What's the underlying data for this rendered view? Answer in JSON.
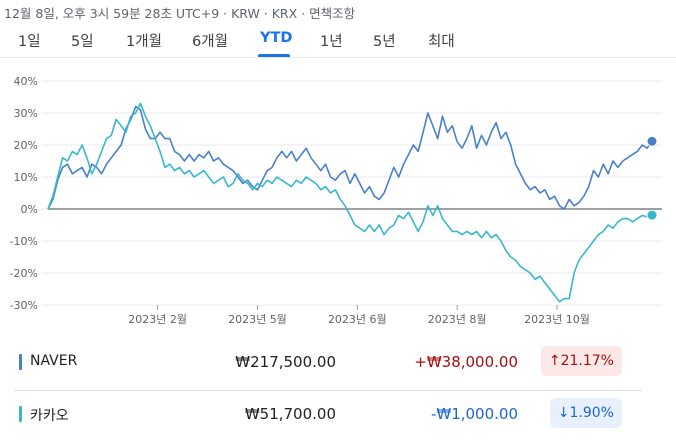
{
  "header": {
    "timestamp": "12월 8일, 오후 3시 59분 28초 UTC+9 · KRW · KRX · 면책조항"
  },
  "ranges": [
    {
      "label": "1일",
      "active": false
    },
    {
      "label": "5일",
      "active": false
    },
    {
      "label": "1개월",
      "active": false
    },
    {
      "label": "6개월",
      "active": false
    },
    {
      "label": "YTD",
      "active": true
    },
    {
      "label": "1년",
      "active": false
    },
    {
      "label": "5년",
      "active": false
    },
    {
      "label": "최대",
      "active": false
    }
  ],
  "colors": {
    "naver": "#4a80c8",
    "kakao": "#38b8cc",
    "grid": "#e8eaed",
    "zero": "#3c4043"
  },
  "chart_data": {
    "type": "line",
    "title": "",
    "xlabel": "",
    "ylabel": "",
    "ylim": [
      -30,
      40
    ],
    "yticks": [
      40,
      30,
      20,
      10,
      0,
      -10,
      -20,
      -30
    ],
    "ytick_labels": [
      "40%",
      "30%",
      "20%",
      "10%",
      "0%",
      "-10%",
      "-20%",
      "-30%"
    ],
    "x_range": [
      0,
      242
    ],
    "x_ticks": [
      {
        "x": 45,
        "label": "2023년 2월"
      },
      {
        "x": 86,
        "label": "2023년 5월"
      },
      {
        "x": 127,
        "label": "2023년 6월"
      },
      {
        "x": 168,
        "label": "2023년 8월"
      },
      {
        "x": 209,
        "label": "2023년 10월"
      }
    ],
    "series": [
      {
        "name": "NAVER",
        "points": [
          [
            0,
            0
          ],
          [
            2,
            3
          ],
          [
            4,
            9
          ],
          [
            6,
            13
          ],
          [
            8,
            14
          ],
          [
            10,
            11
          ],
          [
            12,
            12
          ],
          [
            14,
            13
          ],
          [
            16,
            10
          ],
          [
            18,
            14
          ],
          [
            20,
            13
          ],
          [
            22,
            11
          ],
          [
            24,
            14
          ],
          [
            26,
            16
          ],
          [
            28,
            18
          ],
          [
            30,
            20
          ],
          [
            32,
            25
          ],
          [
            34,
            28
          ],
          [
            36,
            32
          ],
          [
            38,
            31
          ],
          [
            40,
            25
          ],
          [
            42,
            22
          ],
          [
            44,
            22
          ],
          [
            46,
            24
          ],
          [
            48,
            22
          ],
          [
            50,
            22
          ],
          [
            52,
            18
          ],
          [
            54,
            17
          ],
          [
            56,
            15
          ],
          [
            58,
            17
          ],
          [
            60,
            15
          ],
          [
            62,
            17
          ],
          [
            64,
            16
          ],
          [
            66,
            18
          ],
          [
            68,
            15
          ],
          [
            70,
            16
          ],
          [
            72,
            14
          ],
          [
            74,
            13
          ],
          [
            76,
            12
          ],
          [
            78,
            10
          ],
          [
            80,
            8
          ],
          [
            82,
            9
          ],
          [
            84,
            7
          ],
          [
            86,
            6
          ],
          [
            88,
            9
          ],
          [
            90,
            12
          ],
          [
            92,
            13
          ],
          [
            94,
            16
          ],
          [
            96,
            18
          ],
          [
            98,
            16
          ],
          [
            100,
            18
          ],
          [
            102,
            15
          ],
          [
            104,
            17
          ],
          [
            106,
            19
          ],
          [
            108,
            16
          ],
          [
            110,
            14
          ],
          [
            112,
            12
          ],
          [
            114,
            14
          ],
          [
            116,
            10
          ],
          [
            118,
            9
          ],
          [
            120,
            11
          ],
          [
            122,
            12
          ],
          [
            124,
            8
          ],
          [
            126,
            11
          ],
          [
            128,
            8
          ],
          [
            130,
            5
          ],
          [
            132,
            7
          ],
          [
            134,
            4
          ],
          [
            136,
            3
          ],
          [
            138,
            5
          ],
          [
            140,
            9
          ],
          [
            142,
            13
          ],
          [
            144,
            10
          ],
          [
            146,
            14
          ],
          [
            148,
            17
          ],
          [
            150,
            20
          ],
          [
            152,
            18
          ],
          [
            154,
            24
          ],
          [
            156,
            30
          ],
          [
            158,
            26
          ],
          [
            160,
            22
          ],
          [
            162,
            29
          ],
          [
            164,
            24
          ],
          [
            166,
            26
          ],
          [
            168,
            21
          ],
          [
            170,
            19
          ],
          [
            172,
            22
          ],
          [
            174,
            26
          ],
          [
            176,
            19
          ],
          [
            178,
            23
          ],
          [
            180,
            20
          ],
          [
            182,
            24
          ],
          [
            184,
            27
          ],
          [
            186,
            22
          ],
          [
            188,
            24
          ],
          [
            190,
            20
          ],
          [
            192,
            14
          ],
          [
            194,
            11
          ],
          [
            196,
            8
          ],
          [
            198,
            6
          ],
          [
            200,
            7
          ],
          [
            202,
            5
          ],
          [
            204,
            6
          ],
          [
            206,
            3
          ],
          [
            208,
            4
          ],
          [
            210,
            1
          ],
          [
            212,
            0
          ],
          [
            214,
            3
          ],
          [
            216,
            1
          ],
          [
            218,
            2
          ],
          [
            220,
            4
          ],
          [
            222,
            7
          ],
          [
            224,
            12
          ],
          [
            226,
            10
          ],
          [
            228,
            14
          ],
          [
            230,
            11
          ],
          [
            232,
            15
          ],
          [
            234,
            13
          ],
          [
            236,
            15
          ],
          [
            238,
            16
          ],
          [
            240,
            17
          ],
          [
            242,
            18
          ],
          [
            244,
            20
          ],
          [
            246,
            19
          ],
          [
            248,
            21.17
          ]
        ]
      },
      {
        "name": "카카오",
        "points": [
          [
            0,
            0
          ],
          [
            2,
            4
          ],
          [
            4,
            10
          ],
          [
            6,
            16
          ],
          [
            8,
            15
          ],
          [
            10,
            18
          ],
          [
            12,
            17
          ],
          [
            14,
            20
          ],
          [
            16,
            16
          ],
          [
            18,
            11
          ],
          [
            20,
            14
          ],
          [
            22,
            18
          ],
          [
            24,
            22
          ],
          [
            26,
            23
          ],
          [
            28,
            28
          ],
          [
            30,
            26
          ],
          [
            32,
            24
          ],
          [
            34,
            29
          ],
          [
            36,
            30
          ],
          [
            38,
            33
          ],
          [
            40,
            29
          ],
          [
            42,
            26
          ],
          [
            44,
            22
          ],
          [
            46,
            18
          ],
          [
            48,
            13
          ],
          [
            50,
            14
          ],
          [
            52,
            12
          ],
          [
            54,
            13
          ],
          [
            56,
            11
          ],
          [
            58,
            12
          ],
          [
            60,
            10
          ],
          [
            62,
            11
          ],
          [
            64,
            12
          ],
          [
            66,
            10
          ],
          [
            68,
            8
          ],
          [
            70,
            9
          ],
          [
            72,
            10
          ],
          [
            74,
            7
          ],
          [
            76,
            8
          ],
          [
            78,
            11
          ],
          [
            80,
            9
          ],
          [
            82,
            8
          ],
          [
            84,
            6
          ],
          [
            86,
            8
          ],
          [
            88,
            7
          ],
          [
            90,
            9
          ],
          [
            92,
            8
          ],
          [
            94,
            10
          ],
          [
            96,
            9
          ],
          [
            98,
            8
          ],
          [
            100,
            7
          ],
          [
            102,
            9
          ],
          [
            104,
            8
          ],
          [
            106,
            10
          ],
          [
            108,
            9
          ],
          [
            110,
            8
          ],
          [
            112,
            6
          ],
          [
            114,
            7
          ],
          [
            116,
            5
          ],
          [
            118,
            6
          ],
          [
            120,
            3
          ],
          [
            122,
            1
          ],
          [
            124,
            -2
          ],
          [
            126,
            -5
          ],
          [
            128,
            -6
          ],
          [
            130,
            -7
          ],
          [
            132,
            -5
          ],
          [
            134,
            -7
          ],
          [
            136,
            -5
          ],
          [
            138,
            -8
          ],
          [
            140,
            -6
          ],
          [
            142,
            -5
          ],
          [
            144,
            -2
          ],
          [
            146,
            -3
          ],
          [
            148,
            -1
          ],
          [
            150,
            -4
          ],
          [
            152,
            -7
          ],
          [
            154,
            -4
          ],
          [
            156,
            1
          ],
          [
            158,
            -2
          ],
          [
            160,
            1
          ],
          [
            162,
            -3
          ],
          [
            164,
            -5
          ],
          [
            166,
            -7
          ],
          [
            168,
            -7
          ],
          [
            170,
            -8
          ],
          [
            172,
            -7
          ],
          [
            174,
            -8
          ],
          [
            176,
            -7
          ],
          [
            178,
            -9
          ],
          [
            180,
            -7
          ],
          [
            182,
            -9
          ],
          [
            184,
            -8
          ],
          [
            186,
            -10
          ],
          [
            188,
            -13
          ],
          [
            190,
            -15
          ],
          [
            192,
            -16
          ],
          [
            194,
            -18
          ],
          [
            196,
            -19
          ],
          [
            198,
            -20
          ],
          [
            200,
            -22
          ],
          [
            202,
            -21
          ],
          [
            204,
            -23
          ],
          [
            206,
            -25
          ],
          [
            208,
            -27
          ],
          [
            210,
            -29
          ],
          [
            212,
            -28
          ],
          [
            214,
            -28
          ],
          [
            216,
            -20
          ],
          [
            218,
            -16
          ],
          [
            220,
            -14
          ],
          [
            222,
            -12
          ],
          [
            224,
            -10
          ],
          [
            226,
            -8
          ],
          [
            228,
            -7
          ],
          [
            230,
            -5
          ],
          [
            232,
            -6
          ],
          [
            234,
            -4
          ],
          [
            236,
            -3
          ],
          [
            238,
            -3
          ],
          [
            240,
            -4
          ],
          [
            242,
            -3
          ],
          [
            244,
            -2
          ],
          [
            246,
            -2.5
          ],
          [
            248,
            -1.9
          ]
        ]
      }
    ]
  },
  "stocks": [
    {
      "name": "NAVER",
      "color": "#4a80c8",
      "price": "₩217,500.00",
      "change": "+₩38,000.00",
      "percent": "↑21.17%",
      "direction": "pos"
    },
    {
      "name": "카카오",
      "color": "#38b8cc",
      "price": "₩51,700.00",
      "change": "-₩1,000.00",
      "percent": "↓1.90%",
      "direction": "neg"
    }
  ]
}
